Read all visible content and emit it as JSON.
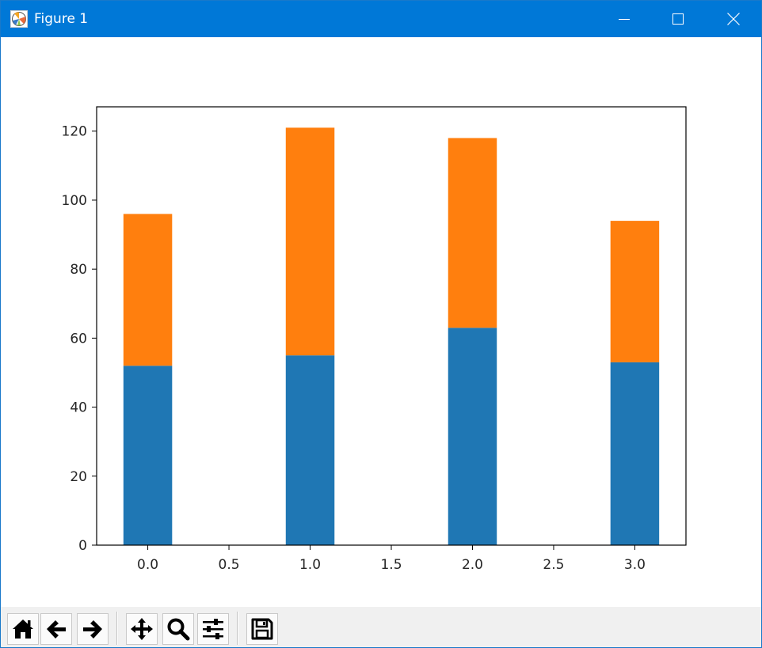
{
  "window": {
    "title": "Figure 1",
    "titlebar_color": "#0078d7",
    "icons": {
      "app": "matplotlib-figure-icon",
      "minimize": "minimize-icon",
      "maximize": "maximize-icon",
      "close": "close-icon"
    }
  },
  "toolbar": {
    "buttons": [
      {
        "name": "home",
        "icon": "home-icon"
      },
      {
        "name": "back",
        "icon": "arrow-left-icon"
      },
      {
        "name": "forward",
        "icon": "arrow-right-icon"
      },
      {
        "name": "pan",
        "icon": "move-icon"
      },
      {
        "name": "zoom",
        "icon": "magnifier-icon"
      },
      {
        "name": "configure-subplots",
        "icon": "sliders-icon"
      },
      {
        "name": "save",
        "icon": "floppy-disk-icon"
      }
    ]
  },
  "chart_data": {
    "type": "bar",
    "stacked": true,
    "x": [
      0,
      1,
      2,
      3
    ],
    "bar_width": 0.3,
    "series": [
      {
        "values": [
          52,
          55,
          63,
          53
        ],
        "color": "#1f77b4"
      },
      {
        "values": [
          44,
          66,
          55,
          41
        ],
        "color": "#ff7f0e"
      }
    ],
    "xlim": [
      -0.315,
      3.315
    ],
    "ylim": [
      0,
      127.05
    ],
    "xticks": [
      "0.0",
      "0.5",
      "1.0",
      "1.5",
      "2.0",
      "2.5",
      "3.0"
    ],
    "xtick_values": [
      0,
      0.5,
      1,
      1.5,
      2,
      2.5,
      3
    ],
    "yticks": [
      "0",
      "20",
      "40",
      "60",
      "80",
      "100",
      "120"
    ],
    "ytick_values": [
      0,
      20,
      40,
      60,
      80,
      100,
      120
    ],
    "title": "",
    "xlabel": "",
    "ylabel": "",
    "grid": false
  }
}
